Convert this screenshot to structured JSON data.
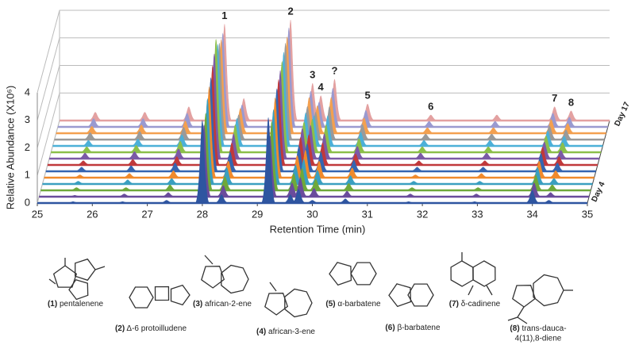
{
  "chart_data": {
    "type": "waterfall",
    "xlabel": "Retention Time (min)",
    "ylabel": "Relative Abundance (X10⁶)",
    "xlim": [
      25,
      35
    ],
    "xticks": [
      25,
      26,
      27,
      28,
      29,
      30,
      31,
      32,
      33,
      34,
      35
    ],
    "ylim": [
      0,
      4
    ],
    "yticks": [
      0,
      1,
      2,
      3,
      4
    ],
    "grid": true,
    "x": [
      25.65,
      26.55,
      27.35,
      28.0,
      28.35,
      29.2,
      29.6,
      29.75,
      30.0,
      30.6,
      31.75,
      32.95,
      34.0,
      34.3
    ],
    "peak_labels": [
      null,
      null,
      null,
      "1",
      null,
      "2",
      "3",
      "4",
      "?",
      "5",
      "6",
      null,
      "7",
      "8"
    ],
    "depth_labels": [
      "Day 4",
      "Day 17"
    ],
    "series": [
      {
        "color": "#2e55a0",
        "values": [
          0.05,
          0.05,
          0.1,
          3.0,
          0.3,
          3.1,
          0.3,
          0.5,
          0.1,
          0.15,
          0.05,
          0.05,
          0.45,
          0.1
        ]
      },
      {
        "color": "#6a4c9c",
        "values": [
          0.05,
          0.1,
          0.15,
          2.6,
          0.4,
          2.2,
          0.5,
          0.7,
          0.3,
          0.2,
          0.1,
          0.1,
          0.5,
          0.15
        ]
      },
      {
        "color": "#6fa83a",
        "values": [
          0.1,
          0.1,
          0.2,
          2.8,
          0.5,
          2.5,
          0.6,
          0.8,
          0.4,
          0.25,
          0.1,
          0.1,
          0.55,
          0.2
        ]
      },
      {
        "color": "#3a9fc0",
        "values": [
          0.1,
          0.15,
          0.2,
          3.1,
          0.6,
          2.7,
          0.7,
          0.9,
          0.5,
          0.3,
          0.1,
          0.1,
          0.6,
          0.2
        ]
      },
      {
        "color": "#f08a2c",
        "values": [
          0.1,
          0.15,
          0.25,
          3.3,
          0.6,
          2.9,
          0.8,
          1.0,
          0.6,
          0.35,
          0.1,
          0.15,
          0.6,
          0.25
        ]
      },
      {
        "color": "#3565b0",
        "values": [
          0.15,
          0.2,
          0.3,
          3.4,
          0.7,
          3.0,
          0.9,
          1.0,
          0.7,
          0.4,
          0.15,
          0.15,
          0.65,
          0.3
        ]
      },
      {
        "color": "#c0393b",
        "values": [
          0.15,
          0.2,
          0.3,
          3.6,
          0.8,
          3.1,
          1.0,
          1.1,
          0.8,
          0.4,
          0.15,
          0.15,
          0.65,
          0.3
        ]
      },
      {
        "color": "#7b5aa6",
        "values": [
          0.2,
          0.25,
          0.35,
          3.8,
          0.9,
          3.2,
          1.1,
          1.2,
          0.9,
          0.45,
          0.2,
          0.2,
          0.6,
          0.3
        ]
      },
      {
        "color": "#8cbf4a",
        "values": [
          0.2,
          0.25,
          0.4,
          4.1,
          1.0,
          3.3,
          1.1,
          1.2,
          1.0,
          0.5,
          0.2,
          0.2,
          0.6,
          0.35
        ]
      },
      {
        "color": "#4cb0d8",
        "values": [
          0.2,
          0.25,
          0.4,
          3.7,
          1.0,
          3.4,
          1.2,
          1.1,
          1.1,
          0.5,
          0.2,
          0.2,
          0.55,
          0.35
        ]
      },
      {
        "color": "#9a9a9a",
        "values": [
          0.25,
          0.3,
          0.45,
          3.5,
          0.9,
          3.5,
          1.2,
          1.0,
          1.2,
          0.55,
          0.2,
          0.2,
          0.5,
          0.35
        ]
      },
      {
        "color": "#f3a050",
        "values": [
          0.25,
          0.3,
          0.45,
          3.4,
          0.9,
          3.5,
          1.3,
          1.0,
          1.3,
          0.55,
          0.2,
          0.2,
          0.5,
          0.35
        ]
      },
      {
        "color": "#9a9ad0",
        "values": [
          0.3,
          0.3,
          0.5,
          3.4,
          0.8,
          3.6,
          1.3,
          0.9,
          1.4,
          0.6,
          0.2,
          0.2,
          0.5,
          0.35
        ]
      },
      {
        "color": "#e3a1a1",
        "values": [
          0.3,
          0.3,
          0.5,
          3.5,
          0.8,
          3.65,
          1.35,
          0.9,
          1.5,
          0.6,
          0.2,
          0.2,
          0.5,
          0.35
        ]
      }
    ],
    "compounds": [
      {
        "number": "(1)",
        "name": [
          "pentalenene"
        ]
      },
      {
        "number": "(2)",
        "name": [
          "Δ-6 protoilludene"
        ]
      },
      {
        "number": "(3)",
        "name": [
          "african-2-ene"
        ]
      },
      {
        "number": "(4)",
        "name": [
          "african-3-ene"
        ]
      },
      {
        "number": "(5)",
        "name": [
          "α-barbatene"
        ]
      },
      {
        "number": "(6)",
        "name": [
          "β-barbatene"
        ]
      },
      {
        "number": "(7)",
        "name": [
          "δ-cadinene"
        ]
      },
      {
        "number": "(8)",
        "name": [
          "trans-dauca-",
          "4(11),8-diene"
        ]
      }
    ]
  }
}
